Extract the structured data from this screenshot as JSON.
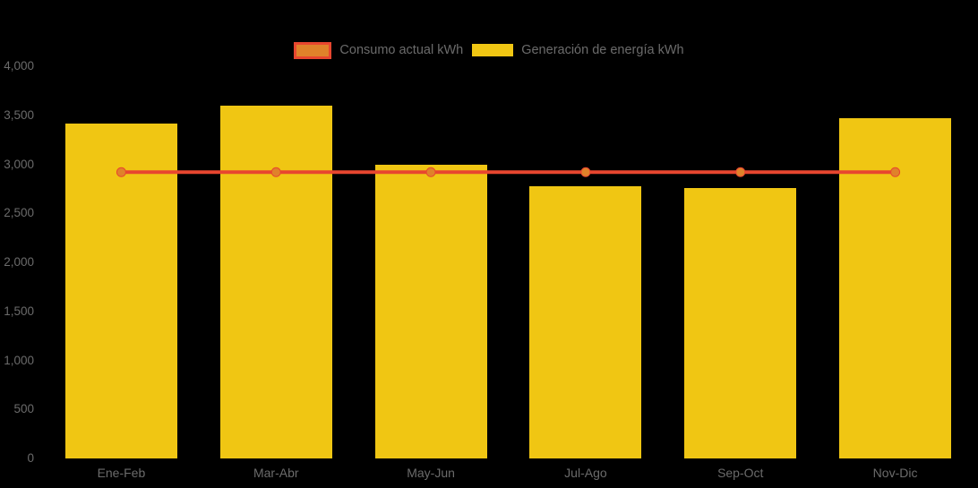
{
  "colors": {
    "background": "#000000",
    "bar": "#F0C613",
    "line": "#E8462F",
    "marker": "#E0822A",
    "axis_text": "#6B6B6B",
    "legend_text": "#6B6B6B"
  },
  "legend": {
    "position": "top-center",
    "items": [
      {
        "label": "Consumo actual kWh",
        "series_type": "line",
        "swatch_fill": "#E0822A",
        "swatch_border": "#E8462F"
      },
      {
        "label": "Generación de energía kWh",
        "series_type": "bar",
        "swatch_fill": "#F0C613",
        "swatch_border": "#F0C613"
      }
    ]
  },
  "chart_data": {
    "type": "bar",
    "subtype": "bar-line-combo",
    "categories": [
      "Ene-Feb",
      "Mar-Abr",
      "May-Jun",
      "Jul-Ago",
      "Sep-Oct",
      "Nov-Dic"
    ],
    "series": [
      {
        "name": "Generación de energía kWh",
        "type": "bar",
        "color": "#F0C613",
        "values": [
          3420,
          3600,
          3000,
          2780,
          2760,
          3470
        ]
      },
      {
        "name": "Consumo actual kWh",
        "type": "line",
        "color": "#E8462F",
        "marker_color": "#E0822A",
        "values": [
          2920,
          2920,
          2920,
          2920,
          2920,
          2920
        ]
      }
    ],
    "title": "",
    "xlabel": "",
    "ylabel": "",
    "ylim": [
      0,
      4000
    ],
    "y_ticks": [
      0,
      500,
      1000,
      1500,
      2000,
      2500,
      3000,
      3500,
      4000
    ],
    "y_tick_labels": [
      "0",
      "500",
      "1,000",
      "1,500",
      "2,000",
      "2,500",
      "3,000",
      "3,500",
      "4,000"
    ],
    "grid": false,
    "legend_position": "top-center"
  }
}
